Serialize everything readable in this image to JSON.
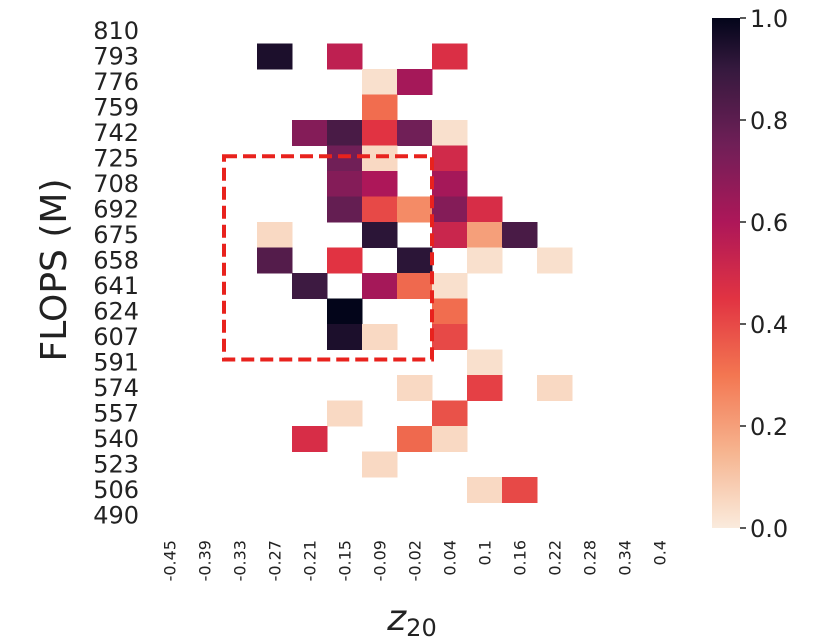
{
  "chart_data": {
    "type": "heatmap",
    "ylabel": "FLOPS (M)",
    "xlabel": "z",
    "xlabel_sub": "20",
    "x_categories": [
      "-0.45",
      "-0.39",
      "-0.33",
      "-0.27",
      "-0.21",
      "-0.15",
      "-0.09",
      "-0.02",
      "0.04",
      "0.1",
      "0.16",
      "0.22",
      "0.28",
      "0.34",
      "0.4"
    ],
    "y_categories": [
      "810",
      "793",
      "776",
      "759",
      "742",
      "725",
      "708",
      "692",
      "675",
      "658",
      "641",
      "624",
      "607",
      "591",
      "574",
      "557",
      "540",
      "523",
      "506",
      "490"
    ],
    "colorbar": {
      "min": 0.0,
      "max": 1.0,
      "ticks": [
        "0.0",
        "0.2",
        "0.4",
        "0.6",
        "0.8",
        "1.0"
      ],
      "colormap": "rocket_r"
    },
    "cells": [
      {
        "y": "793",
        "x": "-0.27",
        "v": 0.95
      },
      {
        "y": "793",
        "x": "-0.15",
        "v": 0.55
      },
      {
        "y": "793",
        "x": "0.04",
        "v": 0.47
      },
      {
        "y": "776",
        "x": "-0.09",
        "v": 0.03
      },
      {
        "y": "776",
        "x": "-0.02",
        "v": 0.62
      },
      {
        "y": "759",
        "x": "-0.09",
        "v": 0.32
      },
      {
        "y": "742",
        "x": "-0.21",
        "v": 0.7
      },
      {
        "y": "742",
        "x": "-0.15",
        "v": 0.85
      },
      {
        "y": "742",
        "x": "-0.09",
        "v": 0.45
      },
      {
        "y": "742",
        "x": "-0.02",
        "v": 0.75
      },
      {
        "y": "742",
        "x": "0.04",
        "v": 0.03
      },
      {
        "y": "725",
        "x": "-0.15",
        "v": 0.75
      },
      {
        "y": "725",
        "x": "-0.09",
        "v": 0.05
      },
      {
        "y": "725",
        "x": "0.04",
        "v": 0.5
      },
      {
        "y": "708",
        "x": "-0.15",
        "v": 0.7
      },
      {
        "y": "708",
        "x": "-0.09",
        "v": 0.6
      },
      {
        "y": "708",
        "x": "0.04",
        "v": 0.62
      },
      {
        "y": "692",
        "x": "-0.15",
        "v": 0.78
      },
      {
        "y": "692",
        "x": "-0.09",
        "v": 0.4
      },
      {
        "y": "692",
        "x": "-0.02",
        "v": 0.25
      },
      {
        "y": "692",
        "x": "0.04",
        "v": 0.7
      },
      {
        "y": "692",
        "x": "0.1",
        "v": 0.48
      },
      {
        "y": "675",
        "x": "-0.27",
        "v": 0.05
      },
      {
        "y": "675",
        "x": "-0.09",
        "v": 0.92
      },
      {
        "y": "675",
        "x": "0.04",
        "v": 0.52
      },
      {
        "y": "675",
        "x": "0.1",
        "v": 0.2
      },
      {
        "y": "675",
        "x": "0.16",
        "v": 0.85
      },
      {
        "y": "658",
        "x": "-0.27",
        "v": 0.82
      },
      {
        "y": "658",
        "x": "-0.15",
        "v": 0.45
      },
      {
        "y": "658",
        "x": "-0.02",
        "v": 0.92
      },
      {
        "y": "658",
        "x": "0.1",
        "v": 0.03
      },
      {
        "y": "658",
        "x": "0.22",
        "v": 0.03
      },
      {
        "y": "641",
        "x": "-0.21",
        "v": 0.88
      },
      {
        "y": "641",
        "x": "-0.09",
        "v": 0.62
      },
      {
        "y": "641",
        "x": "-0.02",
        "v": 0.33
      },
      {
        "y": "641",
        "x": "0.04",
        "v": 0.03
      },
      {
        "y": "624",
        "x": "-0.15",
        "v": 1.0
      },
      {
        "y": "624",
        "x": "0.04",
        "v": 0.32
      },
      {
        "y": "607",
        "x": "-0.15",
        "v": 0.95
      },
      {
        "y": "607",
        "x": "-0.09",
        "v": 0.05
      },
      {
        "y": "607",
        "x": "0.04",
        "v": 0.4
      },
      {
        "y": "591",
        "x": "0.1",
        "v": 0.03
      },
      {
        "y": "574",
        "x": "-0.02",
        "v": 0.05
      },
      {
        "y": "574",
        "x": "0.1",
        "v": 0.42
      },
      {
        "y": "574",
        "x": "0.22",
        "v": 0.05
      },
      {
        "y": "557",
        "x": "-0.15",
        "v": 0.05
      },
      {
        "y": "557",
        "x": "0.04",
        "v": 0.38
      },
      {
        "y": "540",
        "x": "-0.21",
        "v": 0.48
      },
      {
        "y": "540",
        "x": "-0.02",
        "v": 0.33
      },
      {
        "y": "540",
        "x": "0.04",
        "v": 0.05
      },
      {
        "y": "523",
        "x": "-0.09",
        "v": 0.05
      },
      {
        "y": "506",
        "x": "0.1",
        "v": 0.05
      },
      {
        "y": "506",
        "x": "0.16",
        "v": 0.4
      }
    ],
    "highlight_box": {
      "x_from": "-0.33",
      "x_to": "-0.02",
      "y_from": "725",
      "y_to": "607",
      "color": "#e8221d",
      "style": "dashed"
    },
    "grid": false
  }
}
